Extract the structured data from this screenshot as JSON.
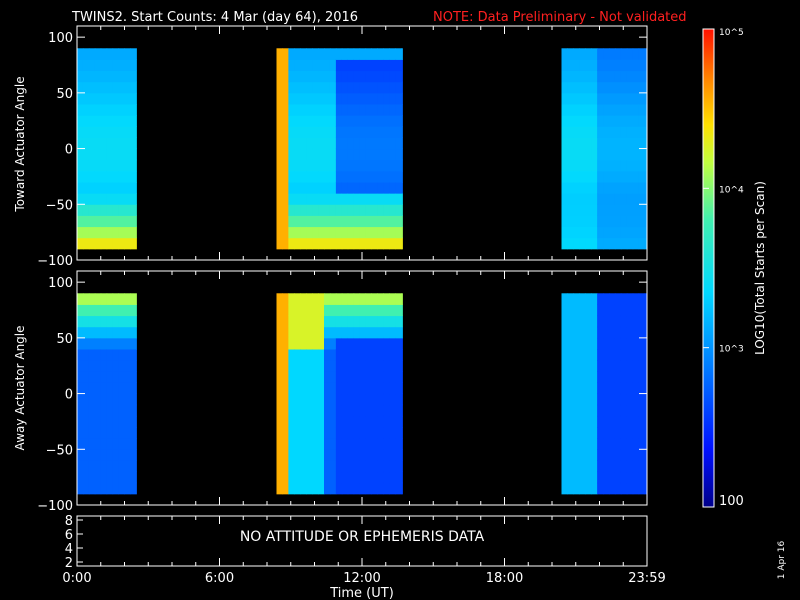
{
  "title": "TWINS2. Start Counts:  4 Mar (day  64), 2016",
  "note": "NOTE: Data Preliminary - Not validated",
  "footer_text": "NO ATTITUDE OR EPHEMERIS DATA",
  "side_date": "1 Apr 16",
  "xlabel": "Time (UT)",
  "colorbar": {
    "label": "LOG10(Total Starts per Scan)",
    "ticks": [
      "10^5",
      "10^4",
      "10^3",
      "100"
    ]
  },
  "chart_data": {
    "type": "heatmap",
    "panels": [
      {
        "name": "toward",
        "ylabel": "Toward Actuator Angle",
        "ylim": [
          -100,
          110
        ],
        "yticks": [
          100,
          50,
          0,
          -50,
          -100
        ]
      },
      {
        "name": "away",
        "ylabel": "Away Actuator Angle",
        "ylim": [
          -100,
          110
        ],
        "yticks": [
          100,
          50,
          0,
          -50,
          -100
        ]
      },
      {
        "name": "ephem",
        "yticks": [
          8,
          6,
          4,
          2
        ]
      }
    ],
    "xlim_hours": [
      0,
      24
    ],
    "xtick_labels": [
      "0:00",
      "6:00",
      "12:00",
      "18:00",
      "23:59"
    ],
    "data_intervals_hours": [
      [
        0,
        2.5
      ],
      [
        8.4,
        13.7
      ],
      [
        20.4,
        24
      ]
    ],
    "colorbar_range": [
      100,
      100000
    ],
    "colors": {
      "low": "#0000a0",
      "mid": "#22d0d0",
      "high": "#ff2000",
      "note": "#ff2020"
    }
  }
}
